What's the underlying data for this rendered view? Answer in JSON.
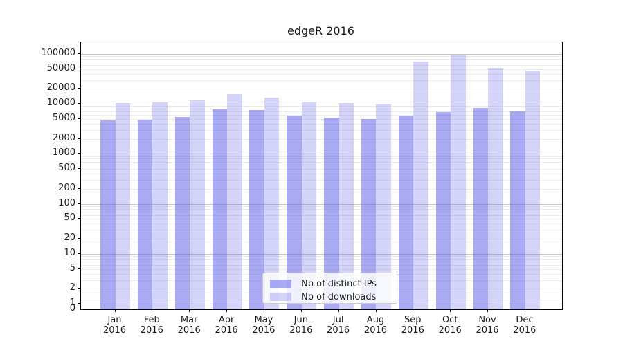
{
  "chart_data": {
    "type": "bar",
    "title": "edgeR 2016",
    "categories": [
      "Jan",
      "Feb",
      "Mar",
      "Apr",
      "May",
      "Jun",
      "Jul",
      "Aug",
      "Sep",
      "Oct",
      "Nov",
      "Dec"
    ],
    "year_label": "2016",
    "series": [
      {
        "name": "Nb of distinct IPs",
        "color": "rgba(85,85,230,0.5)",
        "values": [
          4668,
          4809,
          5507,
          7856,
          7418,
          5867,
          5234,
          5013,
          5747,
          6904,
          8155,
          6980
        ]
      },
      {
        "name": "Nb of downloads",
        "color": "rgba(85,85,230,0.25)",
        "values": [
          10361,
          10602,
          11919,
          15759,
          13276,
          11193,
          10387,
          10046,
          70639,
          94174,
          52326,
          45623
        ]
      }
    ],
    "yscale": "log",
    "ylim": [
      0,
      100000
    ],
    "y_ticks": [
      100000,
      50000,
      20000,
      10000,
      5000,
      2000,
      1000,
      500,
      200,
      100,
      50,
      20,
      10,
      5,
      2,
      1,
      0
    ],
    "grid": true,
    "legend_position": "lower center",
    "colors": {
      "grid_major": "#c8c8c8",
      "grid_minor": "#ececec",
      "frame": "#000000",
      "text": "#1a1a1a"
    }
  }
}
